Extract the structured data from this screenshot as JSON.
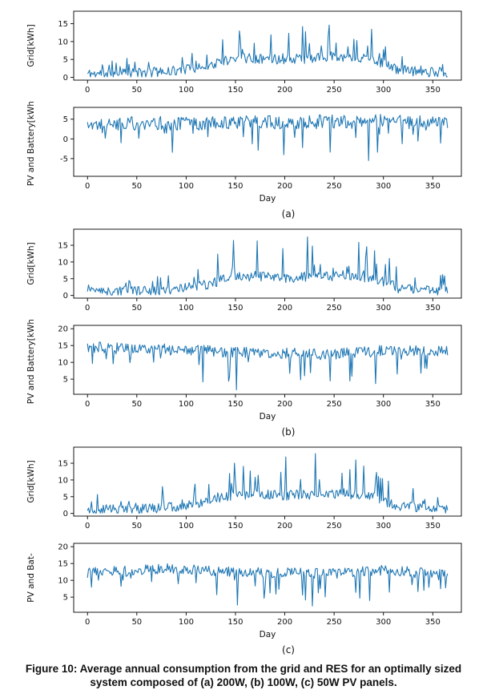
{
  "figure": {
    "line_color": "#1f77b4",
    "caption_line1": "Figure 10: Average annual consumption from the grid and RES for an optimally sized",
    "caption_line2": "system composed of (a) 200W, (b) 100W,  (c) 50W PV panels.",
    "groups": [
      {
        "label": "(a)",
        "chart_indices": [
          0,
          1
        ]
      },
      {
        "label": "(b)",
        "chart_indices": [
          2,
          3
        ]
      },
      {
        "label": "(c)",
        "chart_indices": [
          4,
          5
        ]
      }
    ]
  },
  "chart_data": [
    {
      "type": "line",
      "panel": "a",
      "position": "top",
      "title": "",
      "ylabel": "Grid[kWh]",
      "xlabel": "",
      "xticks": [
        0,
        50,
        100,
        150,
        200,
        250,
        300,
        350
      ],
      "yticks": [
        0,
        5,
        10,
        15
      ],
      "ytick_labels": [
        "0",
        "5",
        "10",
        "15"
      ],
      "xlim": [
        -14,
        379
      ],
      "ylim": [
        -0.8,
        18.5
      ],
      "x_unit": "day",
      "n_points": 366,
      "grid": false,
      "legend": "none",
      "note": "daily grid consumption; near 0-2 kWh in winter, 4-7 kWh band mid-year with spikes up to ~17 kWh around days 140-300",
      "gen": {
        "seed": 11,
        "base": [
          [
            0,
            1.0
          ],
          [
            55,
            1.2
          ],
          [
            90,
            1.8
          ],
          [
            120,
            3.0
          ],
          [
            150,
            5.5
          ],
          [
            200,
            5.0
          ],
          [
            260,
            5.8
          ],
          [
            290,
            5.0
          ],
          [
            315,
            2.0
          ],
          [
            365,
            1.2
          ]
        ],
        "noise": 1.4,
        "event_prob": 0.12,
        "event_sign": 1,
        "event_mag": [
          [
            0,
            4
          ],
          [
            120,
            6
          ],
          [
            150,
            9
          ],
          [
            250,
            12
          ],
          [
            290,
            10
          ],
          [
            320,
            5
          ],
          [
            365,
            4
          ]
        ],
        "clip": [
          0.1,
          17.5
        ]
      }
    },
    {
      "type": "line",
      "panel": "a",
      "position": "bottom",
      "title": "",
      "ylabel": "PV and Battery[kWh]",
      "xlabel": "Day",
      "xticks": [
        0,
        50,
        100,
        150,
        200,
        250,
        300,
        350
      ],
      "yticks": [
        -5,
        0,
        5
      ],
      "ytick_labels": [
        "-5",
        "0",
        "5"
      ],
      "xlim": [
        -14,
        379
      ],
      "ylim": [
        -9.5,
        8
      ],
      "x_unit": "day",
      "n_points": 366,
      "grid": false,
      "legend": "none",
      "note": "PV and battery contribution; fluctuates around 3-6 kWh with frequent downward dips to about -8 kWh mid-year",
      "gen": {
        "seed": 22,
        "base": [
          [
            0,
            3.8
          ],
          [
            100,
            4.0
          ],
          [
            200,
            4.2
          ],
          [
            300,
            4.5
          ],
          [
            365,
            3.8
          ]
        ],
        "noise": 1.8,
        "event_prob": 0.1,
        "event_sign": -1,
        "event_mag": [
          [
            0,
            5
          ],
          [
            100,
            7
          ],
          [
            150,
            10
          ],
          [
            250,
            12
          ],
          [
            300,
            10
          ],
          [
            365,
            6
          ]
        ],
        "clip": [
          -8.5,
          7.0
        ]
      }
    },
    {
      "type": "line",
      "panel": "b",
      "position": "top",
      "title": "",
      "ylabel": "Grid[kWh]",
      "xlabel": "",
      "xticks": [
        0,
        50,
        100,
        150,
        200,
        250,
        300,
        350
      ],
      "yticks": [
        0,
        5,
        10,
        15
      ],
      "ytick_labels": [
        "0",
        "5",
        "10",
        "15"
      ],
      "xlim": [
        -14,
        379
      ],
      "ylim": [
        -0.8,
        19.8
      ],
      "x_unit": "day",
      "n_points": 366,
      "grid": false,
      "legend": "none",
      "note": "daily grid consumption; low in winter, 4-8 kWh band mid-year with spikes up to ~18 kWh",
      "gen": {
        "seed": 33,
        "base": [
          [
            0,
            1.0
          ],
          [
            55,
            1.3
          ],
          [
            90,
            2.0
          ],
          [
            120,
            3.2
          ],
          [
            150,
            5.8
          ],
          [
            200,
            5.2
          ],
          [
            260,
            6.0
          ],
          [
            290,
            5.2
          ],
          [
            315,
            2.2
          ],
          [
            365,
            1.2
          ]
        ],
        "noise": 1.5,
        "event_prob": 0.12,
        "event_sign": 1,
        "event_mag": [
          [
            0,
            4
          ],
          [
            120,
            7
          ],
          [
            150,
            10
          ],
          [
            250,
            13
          ],
          [
            290,
            11
          ],
          [
            320,
            5
          ],
          [
            365,
            4
          ]
        ],
        "clip": [
          0.1,
          18.3
        ]
      }
    },
    {
      "type": "line",
      "panel": "b",
      "position": "bottom",
      "title": "",
      "ylabel": "PV and Battery[kWh]",
      "xlabel": "Day",
      "xticks": [
        0,
        50,
        100,
        150,
        200,
        250,
        300,
        350
      ],
      "yticks": [
        5,
        10,
        15,
        20
      ],
      "ytick_labels": [
        "5",
        "10",
        "15",
        "20"
      ],
      "xlim": [
        -14,
        379
      ],
      "ylim": [
        0.5,
        21
      ],
      "x_unit": "day",
      "n_points": 366,
      "grid": false,
      "legend": "none",
      "note": "PV and battery contribution; 12-17 kWh band with frequent dips down to ~2 kWh mid-year",
      "gen": {
        "seed": 44,
        "base": [
          [
            0,
            14.5
          ],
          [
            80,
            14.0
          ],
          [
            150,
            13.0
          ],
          [
            250,
            12.5
          ],
          [
            300,
            13.5
          ],
          [
            365,
            13.5
          ]
        ],
        "noise": 1.6,
        "event_prob": 0.1,
        "event_sign": -1,
        "event_mag": [
          [
            0,
            4
          ],
          [
            100,
            8
          ],
          [
            150,
            11
          ],
          [
            250,
            12
          ],
          [
            300,
            9
          ],
          [
            365,
            5
          ]
        ],
        "clip": [
          1.8,
          19.5
        ]
      }
    },
    {
      "type": "line",
      "panel": "c",
      "position": "top",
      "title": "",
      "ylabel": "Grid[kWh]",
      "xlabel": "",
      "xticks": [
        0,
        50,
        100,
        150,
        200,
        250,
        300,
        350
      ],
      "yticks": [
        0,
        5,
        10,
        15
      ],
      "ytick_labels": [
        "0",
        "5",
        "10",
        "15"
      ],
      "xlim": [
        -14,
        379
      ],
      "ylim": [
        -0.8,
        19.8
      ],
      "x_unit": "day",
      "n_points": 366,
      "grid": false,
      "legend": "none",
      "note": "daily grid consumption; low in winter, 4-8 kWh band mid-year with spikes up to ~18 kWh",
      "gen": {
        "seed": 55,
        "base": [
          [
            0,
            1.0
          ],
          [
            55,
            1.3
          ],
          [
            90,
            2.0
          ],
          [
            120,
            3.2
          ],
          [
            150,
            5.8
          ],
          [
            200,
            5.4
          ],
          [
            260,
            6.0
          ],
          [
            290,
            5.0
          ],
          [
            315,
            2.2
          ],
          [
            365,
            1.3
          ]
        ],
        "noise": 1.5,
        "event_prob": 0.12,
        "event_sign": 1,
        "event_mag": [
          [
            0,
            4
          ],
          [
            120,
            7
          ],
          [
            150,
            10
          ],
          [
            250,
            13
          ],
          [
            290,
            11
          ],
          [
            320,
            5
          ],
          [
            365,
            4
          ]
        ],
        "clip": [
          0.1,
          18.3
        ]
      }
    },
    {
      "type": "line",
      "panel": "c",
      "position": "bottom",
      "title": "",
      "ylabel": "PV   and   Bat-",
      "xlabel": "Day",
      "xticks": [
        0,
        50,
        100,
        150,
        200,
        250,
        300,
        350
      ],
      "yticks": [
        5,
        10,
        15,
        20
      ],
      "ytick_labels": [
        "5",
        "10",
        "15",
        "20"
      ],
      "xlim": [
        -14,
        379
      ],
      "ylim": [
        0.5,
        21
      ],
      "x_unit": "day",
      "n_points": 366,
      "grid": false,
      "legend": "none",
      "note": "PV and battery contribution; 10-15 kWh band with frequent dips down to ~2 kWh mid-year",
      "gen": {
        "seed": 66,
        "base": [
          [
            0,
            12.5
          ],
          [
            80,
            13.5
          ],
          [
            150,
            12.5
          ],
          [
            250,
            12.0
          ],
          [
            300,
            13.0
          ],
          [
            365,
            12.0
          ]
        ],
        "noise": 1.5,
        "event_prob": 0.1,
        "event_sign": -1,
        "event_mag": [
          [
            0,
            3
          ],
          [
            100,
            8
          ],
          [
            150,
            11
          ],
          [
            250,
            12
          ],
          [
            300,
            9
          ],
          [
            365,
            6
          ]
        ],
        "clip": [
          1.8,
          19.0
        ]
      }
    }
  ]
}
